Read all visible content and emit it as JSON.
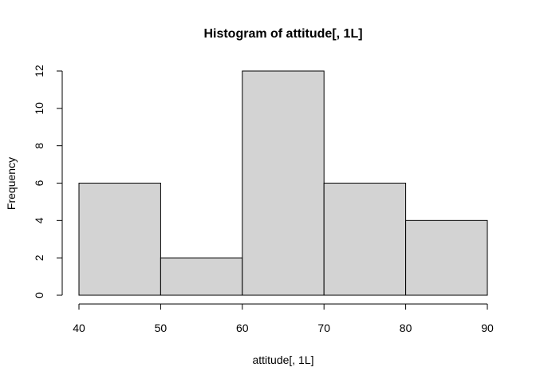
{
  "chart_data": {
    "type": "bar",
    "title": "Histogram of attitude[, 1L]",
    "xlabel": "attitude[, 1L]",
    "ylabel": "Frequency",
    "bins": [
      [
        40,
        50
      ],
      [
        50,
        60
      ],
      [
        60,
        70
      ],
      [
        70,
        80
      ],
      [
        80,
        90
      ]
    ],
    "values": [
      6,
      2,
      12,
      6,
      4
    ],
    "xlim": [
      40,
      90
    ],
    "ylim": [
      0,
      12
    ],
    "x_ticks": [
      40,
      50,
      60,
      70,
      80,
      90
    ],
    "y_ticks": [
      0,
      2,
      4,
      6,
      8,
      10,
      12
    ],
    "bar_color": "#d3d3d3",
    "edge_color": "#000000",
    "grid": false
  }
}
